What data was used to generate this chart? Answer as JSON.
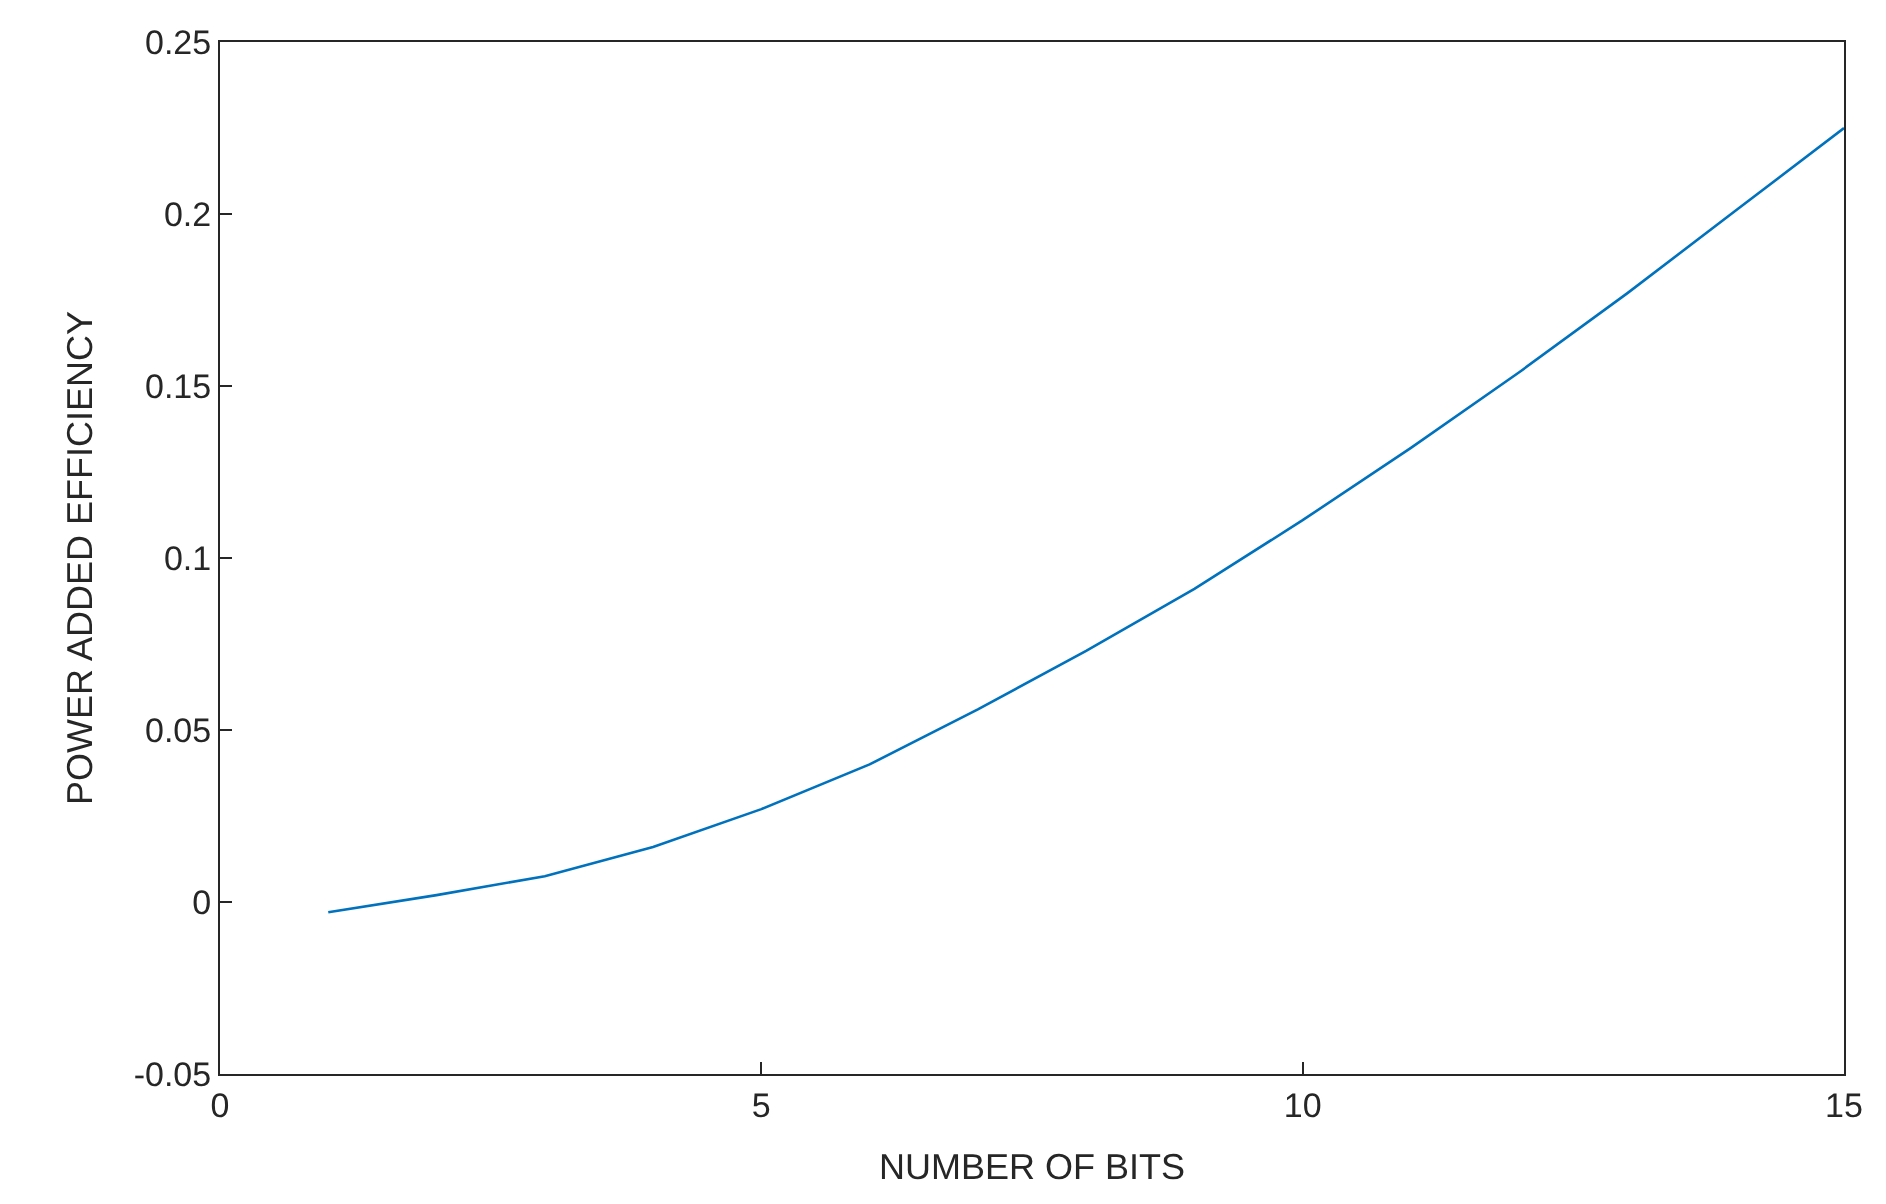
{
  "chart_data": {
    "type": "line",
    "xlabel": "NUMBER OF BITS",
    "ylabel": "POWER ADDED EFFICIENCY",
    "x": [
      1,
      2,
      3,
      4,
      5,
      6,
      7,
      8,
      9,
      10,
      11,
      12,
      13,
      14,
      15
    ],
    "series": [
      {
        "color": "#0072bd",
        "values": [
          -0.003,
          0.002,
          0.0075,
          0.016,
          0.027,
          0.04,
          0.056,
          0.073,
          0.091,
          0.111,
          0.132,
          0.154,
          0.177,
          0.201,
          0.225
        ]
      }
    ],
    "xlim": [
      0,
      15
    ],
    "xticks": [
      0,
      5,
      10,
      15
    ],
    "ylim": [
      -0.05,
      0.25
    ],
    "yticks": [
      {
        "value": -0.05,
        "label": "-0.05"
      },
      0,
      {
        "value": 0.05,
        "label": "0.05"
      },
      {
        "value": 0.1,
        "label": "0.1"
      },
      {
        "value": 0.15,
        "label": "0.15"
      },
      {
        "value": 0.2,
        "label": "0.2"
      },
      {
        "value": 0.25,
        "label": "0.25"
      }
    ],
    "legend": false,
    "marker": "none",
    "line_style": "solid"
  }
}
